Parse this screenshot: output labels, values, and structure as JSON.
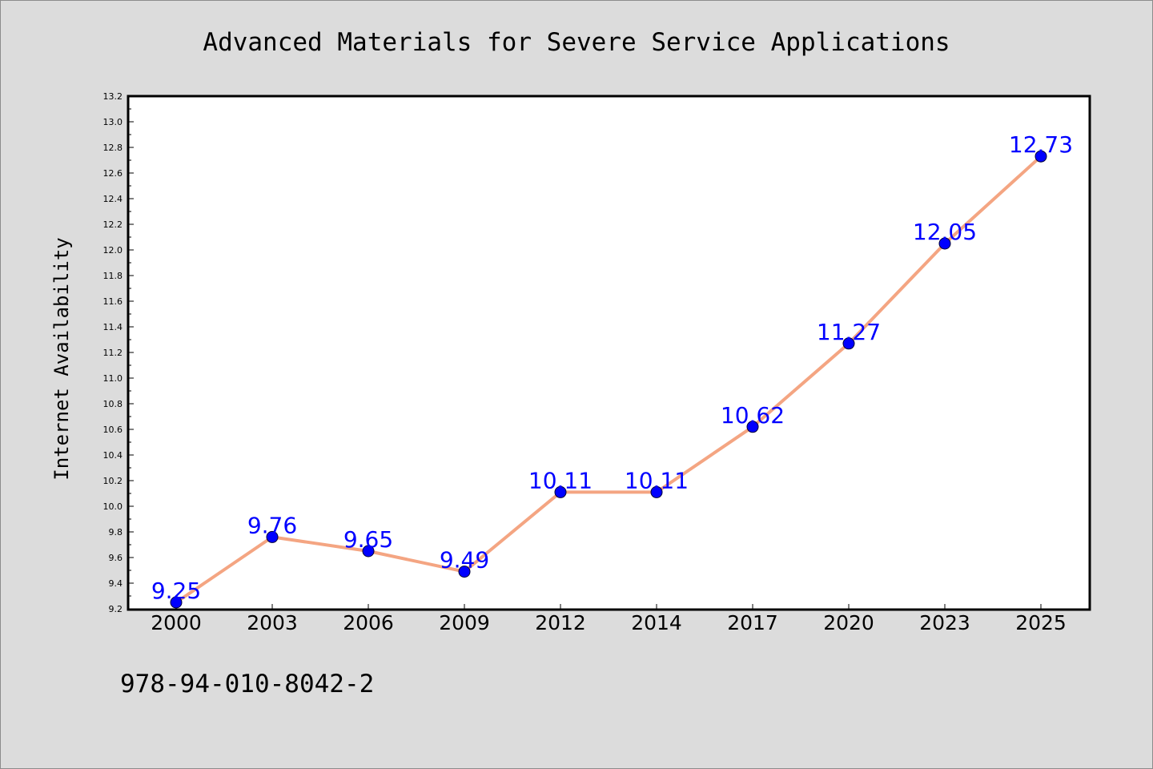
{
  "colors": {
    "background": "#dcdcdc",
    "plot_background": "#ffffff",
    "line": "#f4a582",
    "marker": "#0000ff",
    "data_label": "#0000ff"
  },
  "footer_text": "978-94-010-8042-2",
  "chart_data": {
    "type": "line",
    "title": "Advanced Materials for Severe Service Applications",
    "xlabel": "",
    "ylabel": "Internet Availability",
    "categories": [
      "2000",
      "2003",
      "2006",
      "2009",
      "2012",
      "2014",
      "2017",
      "2020",
      "2023",
      "2025"
    ],
    "series": [
      {
        "values": [
          9.25,
          9.76,
          9.65,
          9.49,
          10.11,
          10.11,
          10.62,
          11.27,
          12.05,
          12.73
        ]
      }
    ],
    "data_labels": [
      "9.25",
      "9.76",
      "9.65",
      "9.49",
      "10.11",
      "10.11",
      "10.62",
      "11.27",
      "12.05",
      "12.73"
    ],
    "ylim": [
      9.2,
      13.2
    ],
    "yticks": [
      "9.2",
      "9.4",
      "9.6",
      "9.8",
      "10.0",
      "10.2",
      "10.4",
      "10.6",
      "10.8",
      "11.0",
      "11.2",
      "11.4",
      "11.6",
      "11.8",
      "12.0",
      "12.2",
      "12.4",
      "12.6",
      "12.8",
      "13.0",
      "13.2"
    ],
    "grid": false,
    "legend": "none"
  }
}
